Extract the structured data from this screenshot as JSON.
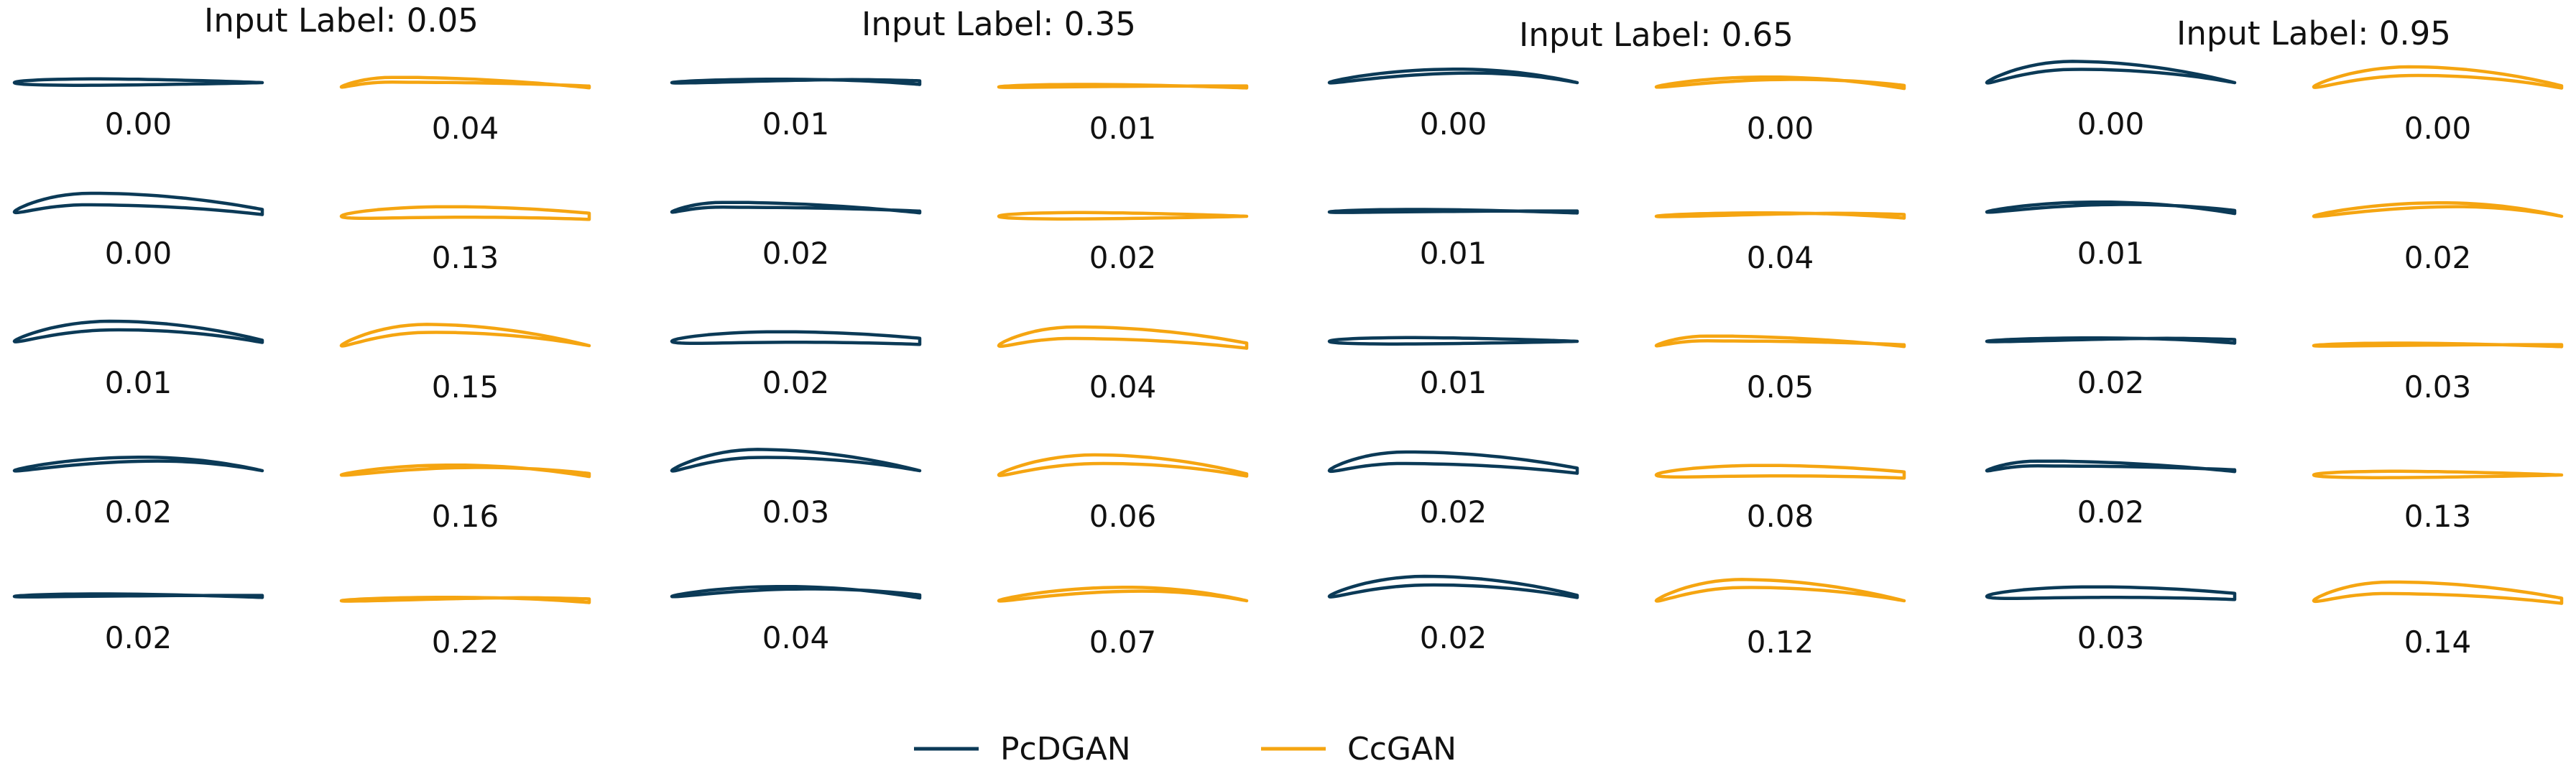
{
  "colors": {
    "pcdgan": "#0b3a57",
    "ccgan": "#f5a511"
  },
  "groups": [
    {
      "title": "Input Label: 0.05",
      "pcdgan": [
        "0.00",
        "0.00",
        "0.01",
        "0.02",
        "0.02"
      ],
      "ccgan": [
        "0.04",
        "0.13",
        "0.15",
        "0.16",
        "0.22"
      ]
    },
    {
      "title": "Input Label: 0.35",
      "pcdgan": [
        "0.01",
        "0.02",
        "0.02",
        "0.03",
        "0.04"
      ],
      "ccgan": [
        "0.01",
        "0.02",
        "0.04",
        "0.06",
        "0.07"
      ]
    },
    {
      "title": "Input Label: 0.65",
      "pcdgan": [
        "0.00",
        "0.01",
        "0.01",
        "0.02",
        "0.02"
      ],
      "ccgan": [
        "0.00",
        "0.04",
        "0.05",
        "0.08",
        "0.12"
      ]
    },
    {
      "title": "Input Label: 0.95",
      "pcdgan": [
        "0.00",
        "0.01",
        "0.02",
        "0.02",
        "0.03"
      ],
      "ccgan": [
        "0.00",
        "0.02",
        "0.03",
        "0.13",
        "0.14"
      ]
    }
  ],
  "legend": [
    {
      "label": "PcDGAN",
      "color": "#0b3a57"
    },
    {
      "label": "CcGAN",
      "color": "#f5a511"
    }
  ]
}
